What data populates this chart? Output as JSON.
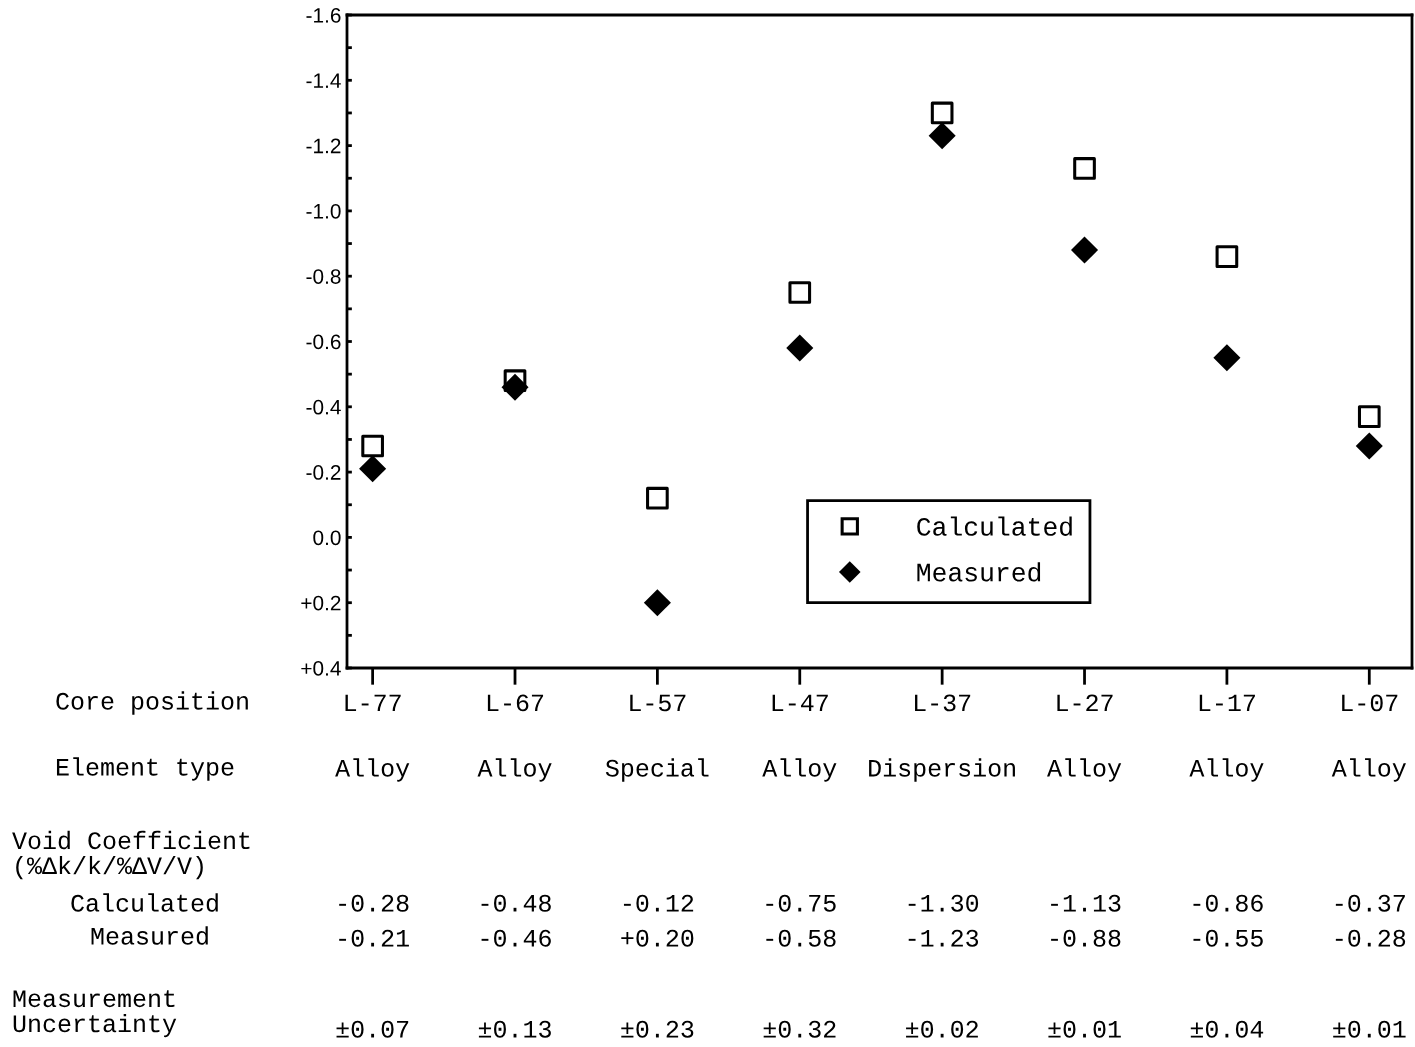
{
  "chart_data": {
    "type": "scatter",
    "categories": [
      "L-77",
      "L-67",
      "L-57",
      "L-47",
      "L-37",
      "L-27",
      "L-17",
      "L-07"
    ],
    "series": [
      {
        "name": "Calculated",
        "color": "#000000",
        "marker": "square",
        "values": [
          -0.28,
          -0.48,
          -0.12,
          -0.75,
          -1.3,
          -1.13,
          -0.86,
          -0.37
        ],
        "value_labels": [
          "-0.28",
          "-0.48",
          "-0.12",
          "-0.75",
          "-1.30",
          "-1.13",
          "-0.86",
          "-0.37"
        ]
      },
      {
        "name": "Measured",
        "color": "#000000",
        "marker": "diamond",
        "values": [
          -0.21,
          -0.46,
          0.2,
          -0.58,
          -1.23,
          -0.88,
          -0.55,
          -0.28
        ],
        "value_labels": [
          "-0.21",
          "-0.46",
          "+0.20",
          "-0.58",
          "-1.23",
          "-0.88",
          "-0.55",
          "-0.28"
        ]
      }
    ],
    "ylim": [
      0.4,
      -1.6
    ],
    "yticks": [
      {
        "value": -1.6,
        "label": "-1.6"
      },
      {
        "value": -1.5,
        "label": null
      },
      {
        "value": -1.4,
        "label": "-1.4"
      },
      {
        "value": -1.3,
        "label": null
      },
      {
        "value": -1.2,
        "label": "-1.2"
      },
      {
        "value": -1.1,
        "label": null
      },
      {
        "value": -1.0,
        "label": "-1.0"
      },
      {
        "value": -0.9,
        "label": null
      },
      {
        "value": -0.8,
        "label": "-0.8"
      },
      {
        "value": -0.7,
        "label": null
      },
      {
        "value": -0.6,
        "label": "-0.6"
      },
      {
        "value": -0.5,
        "label": null
      },
      {
        "value": -0.4,
        "label": "-0.4"
      },
      {
        "value": -0.3,
        "label": null
      },
      {
        "value": -0.2,
        "label": "-0.2"
      },
      {
        "value": -0.1,
        "label": null
      },
      {
        "value": 0.0,
        "label": "0.0"
      },
      {
        "value": 0.1,
        "label": null
      },
      {
        "value": 0.2,
        "label": "+0.2"
      },
      {
        "value": 0.3,
        "label": null
      },
      {
        "value": 0.4,
        "label": "+0.4"
      }
    ],
    "legend": "bottom right",
    "grid": false,
    "annotations": [
      "Core position",
      "Element type",
      "Alloy",
      "Alloy",
      "Special",
      "Alloy",
      "Dispersion",
      "Alloy",
      "Alloy",
      "Alloy",
      "Void Coefficient\n(%Δk/k/%ΔV/V)",
      "Calculated",
      "Measured",
      "Measurement\nUncertainty",
      "±0.07",
      "±0.13",
      "±0.23",
      "±0.32",
      "±0.02",
      "±0.01",
      "±0.04",
      "±0.01"
    ]
  }
}
